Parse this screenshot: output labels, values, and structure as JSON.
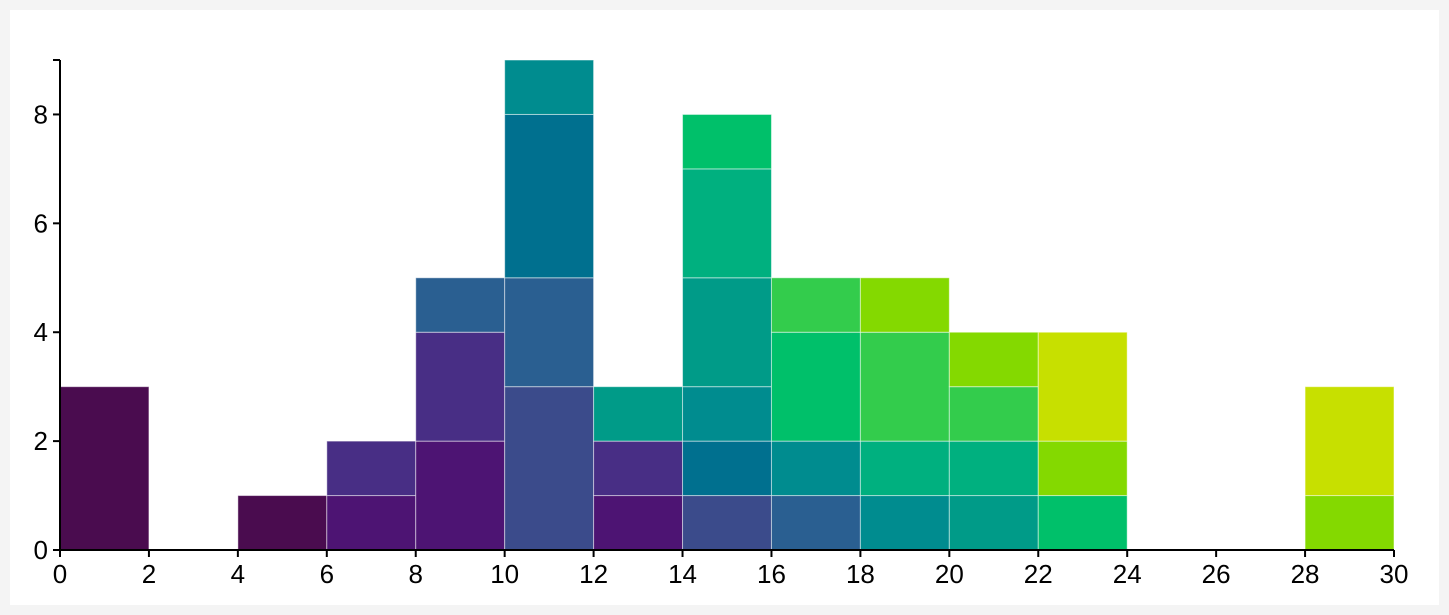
{
  "chart_data": {
    "type": "bar",
    "subtype": "stacked-histogram",
    "title": "",
    "xlabel": "",
    "ylabel": "",
    "xlim": [
      0,
      30
    ],
    "ylim": [
      0,
      9
    ],
    "x_ticks": [
      0,
      2,
      4,
      6,
      8,
      10,
      12,
      14,
      16,
      18,
      20,
      22,
      24,
      26,
      28,
      30
    ],
    "y_ticks": [
      0,
      2,
      4,
      6,
      8
    ],
    "x_tick_labels": [
      "0",
      "2",
      "4",
      "6",
      "8",
      "10",
      "12",
      "14",
      "16",
      "18",
      "20",
      "22",
      "24",
      "26",
      "28",
      "30"
    ],
    "y_tick_labels": [
      "0",
      "2",
      "4",
      "6",
      "8"
    ],
    "bin_width": 2,
    "grid": false,
    "legend": "none",
    "bins": [
      {
        "x0": 0,
        "x1": 2,
        "segments": [
          {
            "value": 3,
            "color": "#4a0c4f"
          }
        ]
      },
      {
        "x0": 2,
        "x1": 4,
        "segments": []
      },
      {
        "x0": 4,
        "x1": 6,
        "segments": [
          {
            "value": 1,
            "color": "#4a0c4f"
          }
        ]
      },
      {
        "x0": 6,
        "x1": 8,
        "segments": [
          {
            "value": 1,
            "color": "#4d1473"
          },
          {
            "value": 1,
            "color": "#482e85"
          }
        ]
      },
      {
        "x0": 8,
        "x1": 10,
        "segments": [
          {
            "value": 2,
            "color": "#4d1473"
          },
          {
            "value": 2,
            "color": "#482e85"
          },
          {
            "value": 1,
            "color": "#2a5f91"
          }
        ]
      },
      {
        "x0": 10,
        "x1": 12,
        "segments": [
          {
            "value": 3,
            "color": "#3b4b8b"
          },
          {
            "value": 2,
            "color": "#2a5f91"
          },
          {
            "value": 3,
            "color": "#00708f"
          },
          {
            "value": 1,
            "color": "#008c8f"
          }
        ]
      },
      {
        "x0": 12,
        "x1": 14,
        "segments": [
          {
            "value": 1,
            "color": "#4d1473"
          },
          {
            "value": 1,
            "color": "#482e85"
          },
          {
            "value": 1,
            "color": "#009b88"
          }
        ]
      },
      {
        "x0": 14,
        "x1": 16,
        "segments": [
          {
            "value": 1,
            "color": "#3b4b8b"
          },
          {
            "value": 1,
            "color": "#00708f"
          },
          {
            "value": 1,
            "color": "#008c8f"
          },
          {
            "value": 2,
            "color": "#009b88"
          },
          {
            "value": 2,
            "color": "#00b07f"
          },
          {
            "value": 1,
            "color": "#00c06a"
          }
        ]
      },
      {
        "x0": 16,
        "x1": 18,
        "segments": [
          {
            "value": 1,
            "color": "#2a5f91"
          },
          {
            "value": 1,
            "color": "#008c8f"
          },
          {
            "value": 2,
            "color": "#00c06a"
          },
          {
            "value": 1,
            "color": "#33cc4c"
          }
        ]
      },
      {
        "x0": 18,
        "x1": 20,
        "segments": [
          {
            "value": 1,
            "color": "#008c8f"
          },
          {
            "value": 1,
            "color": "#00b07f"
          },
          {
            "value": 2,
            "color": "#33cc4c"
          },
          {
            "value": 1,
            "color": "#84d900"
          }
        ]
      },
      {
        "x0": 20,
        "x1": 22,
        "segments": [
          {
            "value": 1,
            "color": "#009b88"
          },
          {
            "value": 1,
            "color": "#00b07f"
          },
          {
            "value": 1,
            "color": "#33cc4c"
          },
          {
            "value": 1,
            "color": "#84d900"
          }
        ]
      },
      {
        "x0": 22,
        "x1": 24,
        "segments": [
          {
            "value": 1,
            "color": "#00c06a"
          },
          {
            "value": 1,
            "color": "#84d900"
          },
          {
            "value": 2,
            "color": "#c7e000"
          }
        ]
      },
      {
        "x0": 24,
        "x1": 26,
        "segments": []
      },
      {
        "x0": 26,
        "x1": 28,
        "segments": []
      },
      {
        "x0": 28,
        "x1": 30,
        "segments": [
          {
            "value": 1,
            "color": "#84d900"
          },
          {
            "value": 2,
            "color": "#c7e000"
          }
        ]
      }
    ]
  }
}
